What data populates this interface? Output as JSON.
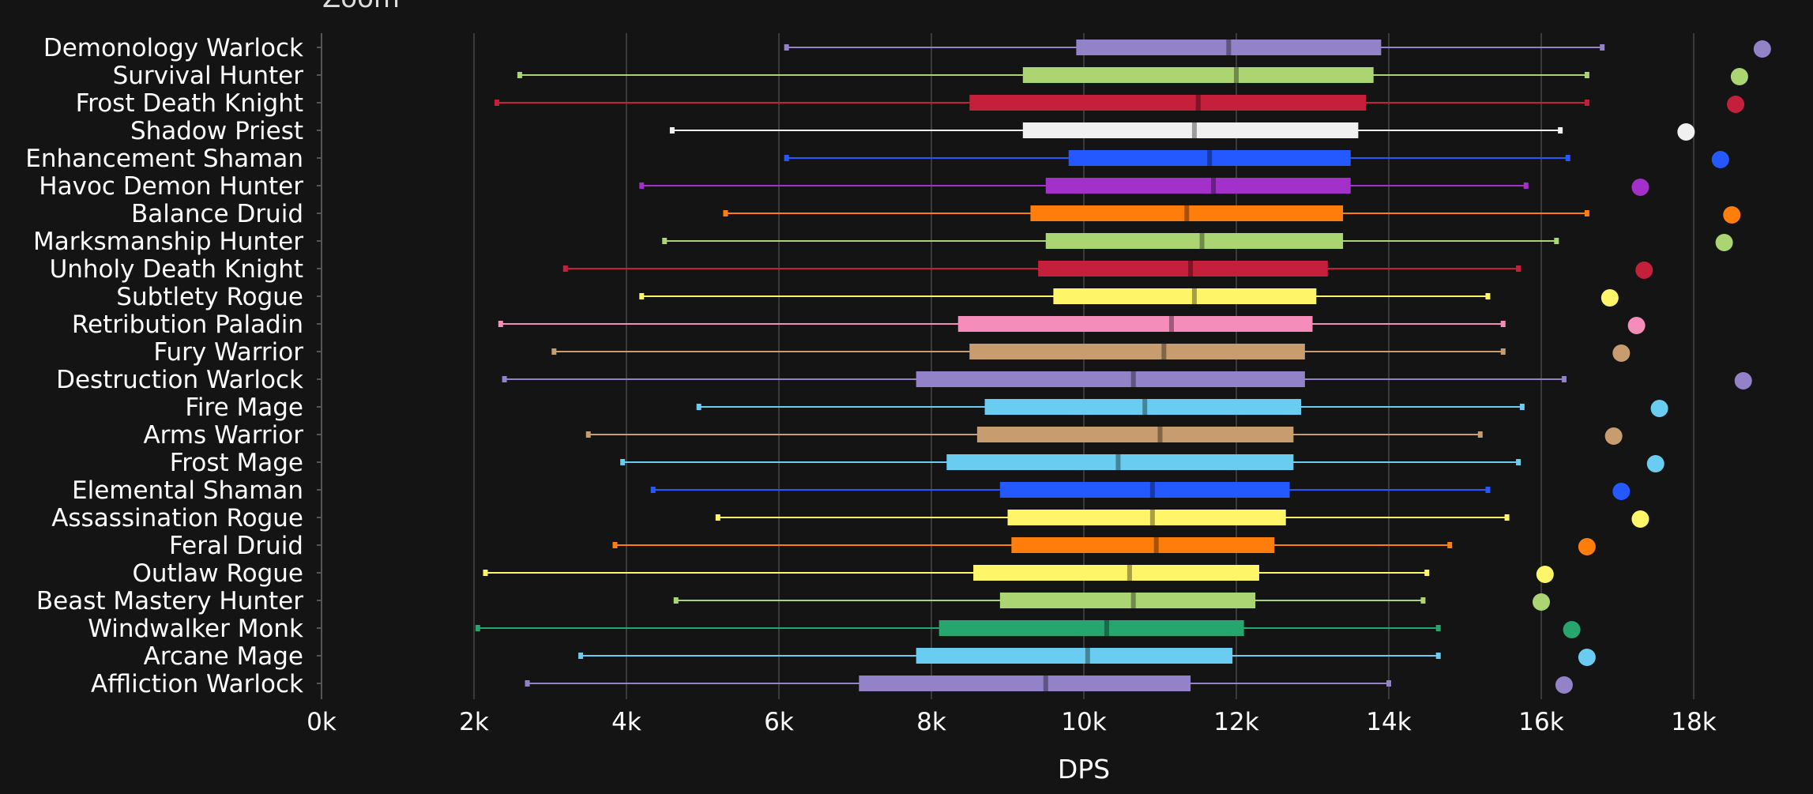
{
  "header": {
    "zoom_label": "Zoom"
  },
  "chart_data": {
    "type": "boxplot",
    "title": "",
    "xlabel": "DPS",
    "ylabel": "",
    "xlim": [
      0,
      19000
    ],
    "x_ticks": [
      0,
      2000,
      4000,
      6000,
      8000,
      10000,
      12000,
      14000,
      16000,
      18000
    ],
    "x_tick_labels": [
      "0k",
      "2k",
      "4k",
      "6k",
      "8k",
      "10k",
      "12k",
      "14k",
      "16k",
      "18k"
    ],
    "grid": true,
    "series": [
      {
        "name": "Demonology Warlock",
        "color": "#9482C9",
        "min": 6100,
        "q1": 9900,
        "median": 11900,
        "q3": 13900,
        "max": 16800,
        "top": 18900
      },
      {
        "name": "Survival Hunter",
        "color": "#ABD473",
        "min": 2600,
        "q1": 9200,
        "median": 12000,
        "q3": 13800,
        "max": 16600,
        "top": 18600
      },
      {
        "name": "Frost Death Knight",
        "color": "#C41F3B",
        "min": 2300,
        "q1": 8500,
        "median": 11500,
        "q3": 13700,
        "max": 16600,
        "top": 18550
      },
      {
        "name": "Shadow Priest",
        "color": "#F0F0F0",
        "min": 4600,
        "q1": 9200,
        "median": 11450,
        "q3": 13600,
        "max": 16250,
        "top": 17900
      },
      {
        "name": "Enhancement Shaman",
        "color": "#2459FF",
        "min": 6100,
        "q1": 9800,
        "median": 11650,
        "q3": 13500,
        "max": 16350,
        "top": 18350
      },
      {
        "name": "Havoc Demon Hunter",
        "color": "#A330C9",
        "min": 4200,
        "q1": 9500,
        "median": 11700,
        "q3": 13500,
        "max": 15800,
        "top": 17300
      },
      {
        "name": "Balance Druid",
        "color": "#FF7D0A",
        "min": 5300,
        "q1": 9300,
        "median": 11350,
        "q3": 13400,
        "max": 16600,
        "top": 18500
      },
      {
        "name": "Marksmanship Hunter",
        "color": "#ABD473",
        "min": 4500,
        "q1": 9500,
        "median": 11550,
        "q3": 13400,
        "max": 16200,
        "top": 18400
      },
      {
        "name": "Unholy Death Knight",
        "color": "#C41F3B",
        "min": 3200,
        "q1": 9400,
        "median": 11400,
        "q3": 13200,
        "max": 15700,
        "top": 17350
      },
      {
        "name": "Subtlety Rogue",
        "color": "#FFF569",
        "min": 4200,
        "q1": 9600,
        "median": 11450,
        "q3": 13050,
        "max": 15300,
        "top": 16900
      },
      {
        "name": "Retribution Paladin",
        "color": "#F58CBA",
        "min": 2350,
        "q1": 8350,
        "median": 11150,
        "q3": 13000,
        "max": 15500,
        "top": 17250
      },
      {
        "name": "Fury Warrior",
        "color": "#C79C6E",
        "min": 3050,
        "q1": 8500,
        "median": 11050,
        "q3": 12900,
        "max": 15500,
        "top": 17050
      },
      {
        "name": "Destruction Warlock",
        "color": "#9482C9",
        "min": 2400,
        "q1": 7800,
        "median": 10650,
        "q3": 12900,
        "max": 16300,
        "top": 18650
      },
      {
        "name": "Fire Mage",
        "color": "#69CCF0",
        "min": 4950,
        "q1": 8700,
        "median": 10800,
        "q3": 12850,
        "max": 15750,
        "top": 17550
      },
      {
        "name": "Arms Warrior",
        "color": "#C79C6E",
        "min": 3500,
        "q1": 8600,
        "median": 11000,
        "q3": 12750,
        "max": 15200,
        "top": 16950
      },
      {
        "name": "Frost Mage",
        "color": "#69CCF0",
        "min": 3950,
        "q1": 8200,
        "median": 10450,
        "q3": 12750,
        "max": 15700,
        "top": 17500
      },
      {
        "name": "Elemental Shaman",
        "color": "#2459FF",
        "min": 4350,
        "q1": 8900,
        "median": 10900,
        "q3": 12700,
        "max": 15300,
        "top": 17050
      },
      {
        "name": "Assassination Rogue",
        "color": "#FFF569",
        "min": 5200,
        "q1": 9000,
        "median": 10900,
        "q3": 12650,
        "max": 15550,
        "top": 17300
      },
      {
        "name": "Feral Druid",
        "color": "#FF7D0A",
        "min": 3850,
        "q1": 9050,
        "median": 10950,
        "q3": 12500,
        "max": 14800,
        "top": 16600
      },
      {
        "name": "Outlaw Rogue",
        "color": "#FFF569",
        "min": 2150,
        "q1": 8550,
        "median": 10600,
        "q3": 12300,
        "max": 14500,
        "top": 16050
      },
      {
        "name": "Beast Mastery Hunter",
        "color": "#ABD473",
        "min": 4650,
        "q1": 8900,
        "median": 10650,
        "q3": 12250,
        "max": 14450,
        "top": 16000
      },
      {
        "name": "Windwalker Monk",
        "color": "#26A56F",
        "min": 2050,
        "q1": 8100,
        "median": 10300,
        "q3": 12100,
        "max": 14650,
        "top": 16400
      },
      {
        "name": "Arcane Mage",
        "color": "#69CCF0",
        "min": 3400,
        "q1": 7800,
        "median": 10050,
        "q3": 11950,
        "max": 14650,
        "top": 16600
      },
      {
        "name": "Affliction Warlock",
        "color": "#9482C9",
        "min": 2700,
        "q1": 7050,
        "median": 9500,
        "q3": 11400,
        "max": 14000,
        "top": 16300
      }
    ]
  }
}
